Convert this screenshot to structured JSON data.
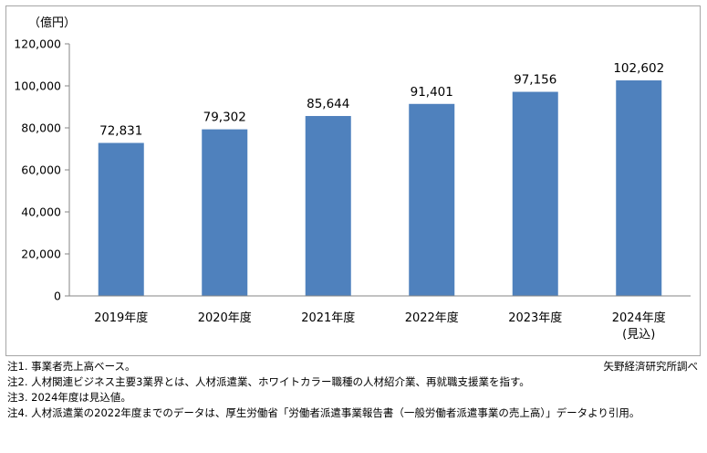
{
  "chart_data": {
    "type": "bar",
    "unit_label": "（億円）",
    "categories": [
      "2019年度",
      "2020年度",
      "2021年度",
      "2022年度",
      "2023年度",
      "2024年度"
    ],
    "category_sublabels": [
      "",
      "",
      "",
      "",
      "",
      "(見込)"
    ],
    "values": [
      72831,
      79302,
      85644,
      91401,
      97156,
      102602
    ],
    "value_labels": [
      "72,831",
      "79,302",
      "85,644",
      "91,401",
      "97,156",
      "102,602"
    ],
    "ylim": [
      0,
      120000
    ],
    "yticks": [
      0,
      20000,
      40000,
      60000,
      80000,
      100000,
      120000
    ],
    "ytick_labels": [
      "0",
      "20,000",
      "40,000",
      "60,000",
      "80,000",
      "100,000",
      "120,000"
    ],
    "bar_color": "#4f81bd",
    "grid": false,
    "legend": "none"
  },
  "notes": [
    "注1.  事業者売上高ベース。",
    "注2.  人材関連ビジネス主要3業界とは、人材派遣業、ホワイトカラー職種の人材紹介業、再就職支援業を指す。",
    "注3.  2024年度は見込値。",
    "注4.  人材派遣業の2022年度までのデータは、厚生労働省「労働者派遣事業報告書（一般労働者派遣事業の売上高）」データより引用。"
  ],
  "source": "矢野経済研究所調べ"
}
